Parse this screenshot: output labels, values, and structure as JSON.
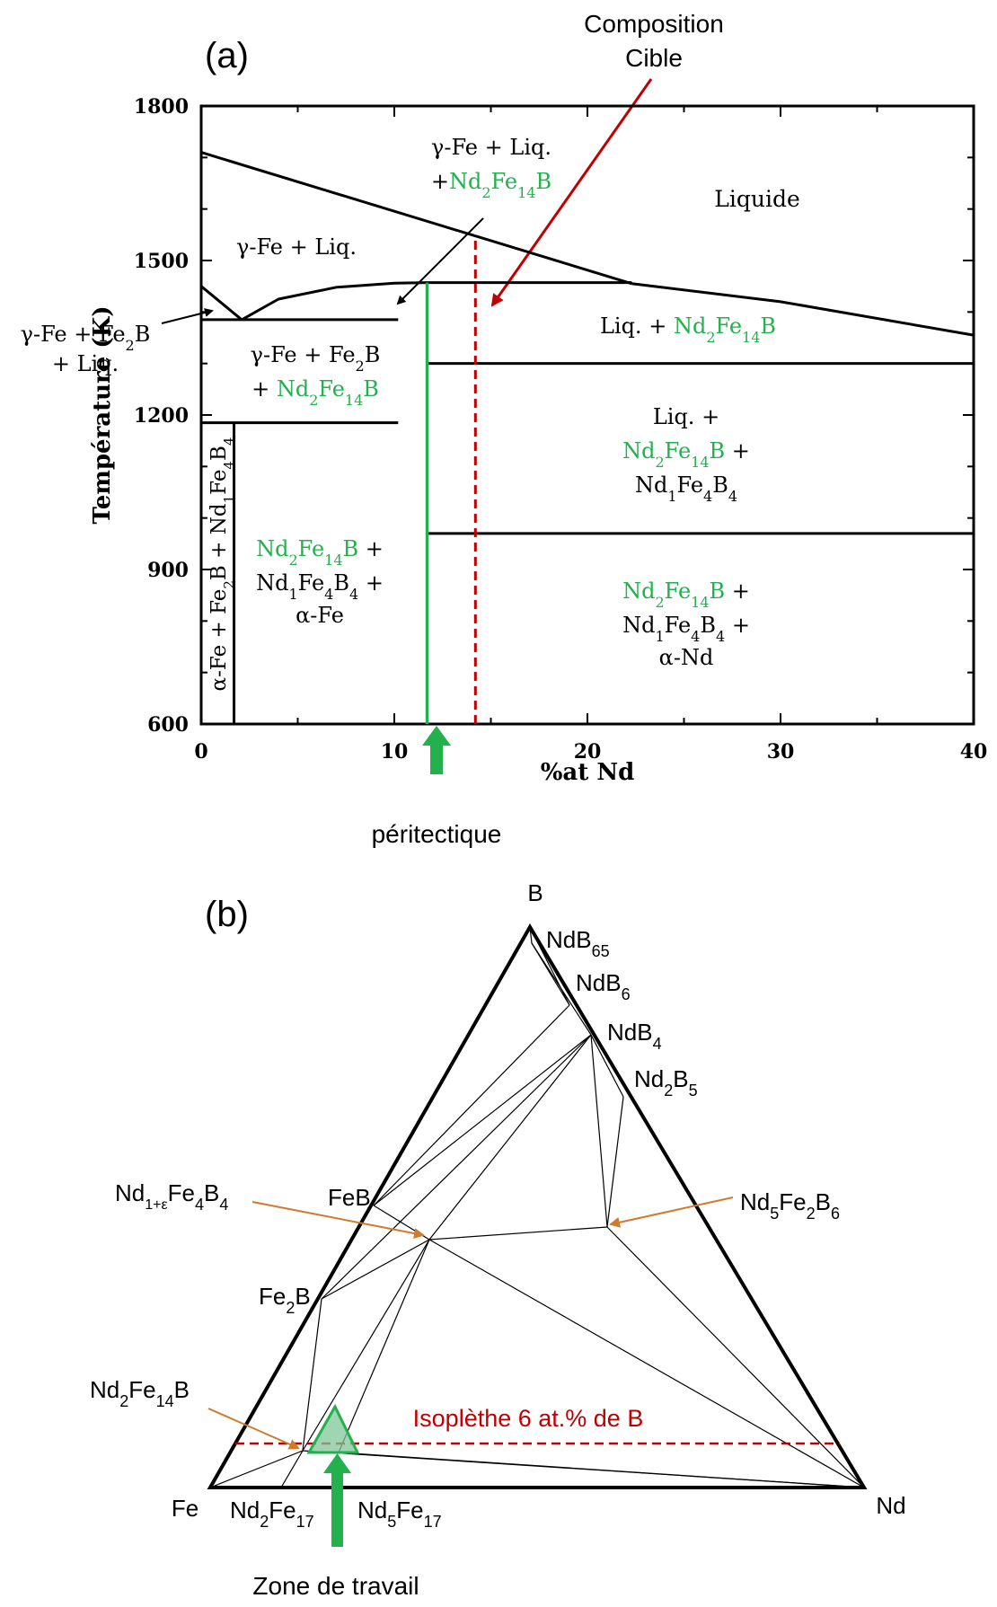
{
  "colors": {
    "black": "#000000",
    "green": "#22b14c",
    "red": "#c00000",
    "orange": "#d07a2e",
    "zone_fill": "#7fc79a"
  },
  "panel_a": {
    "label": "(a)",
    "composition_cible": {
      "line1": "Composition",
      "line2": "Cible"
    },
    "peritectique": "péritectique",
    "regions": {
      "gamma_liq_nd": {
        "line1": "γ-Fe + Liq.",
        "line2": "+Nd2Fe14B"
      },
      "liquide": "Liquide",
      "gamma_liq": "γ-Fe + Liq.",
      "gamma_fe2b_liq": {
        "line1": "γ-Fe + Fe2B",
        "line2": "+ Liq."
      },
      "liq_nd": "Liq. + Nd2Fe14B",
      "gamma_fe2b_nd": {
        "line1": "γ-Fe + Fe2B",
        "line2": "+ Nd2Fe14B"
      },
      "liq_nd_nd1": {
        "line1": "Liq. +",
        "line2": "Nd2Fe14B +",
        "line3": "Nd1Fe4B4"
      },
      "alpha_vertical": "α-Fe + Fe2B + Nd1Fe4B4",
      "nd_nd1_alphafe": {
        "line1": "Nd2Fe14B +",
        "line2": "Nd1Fe4B4 +",
        "line3": "α-Fe"
      },
      "nd_nd1_alphand": {
        "line1": "Nd2Fe14B +",
        "line2": "Nd1Fe4B4 +",
        "line3": "α-Nd"
      }
    }
  },
  "chart_data": {
    "type": "line",
    "xlabel": "%at Nd",
    "ylabel": "Température (K)",
    "xlim": [
      0,
      40
    ],
    "ylim": [
      600,
      1800
    ],
    "x_ticks": [
      "0",
      "10",
      "20",
      "30",
      "40"
    ],
    "y_ticks": [
      "600",
      "900",
      "1200",
      "1500",
      "1800"
    ],
    "series": [
      {
        "x": [
          0,
          22.3
        ],
        "y": [
          1710,
          1455
        ]
      },
      {
        "x": [
          22.3,
          30,
          40
        ],
        "y": [
          1455,
          1420,
          1355
        ]
      },
      {
        "x": [
          0,
          2.1
        ],
        "y": [
          1450,
          1385
        ]
      },
      {
        "x": [
          2.1,
          4,
          7,
          10,
          11.7
        ],
        "y": [
          1385,
          1425,
          1448,
          1456,
          1457
        ]
      },
      {
        "x": [
          11.7,
          22.3
        ],
        "y": [
          1457,
          1457
        ]
      },
      {
        "x": [
          0,
          10.2
        ],
        "y": [
          1385,
          1385
        ]
      },
      {
        "x": [
          0,
          10.2
        ],
        "y": [
          1185,
          1185
        ]
      },
      {
        "x": [
          11.7,
          40
        ],
        "y": [
          1300,
          1300
        ]
      },
      {
        "x": [
          11.7,
          40
        ],
        "y": [
          970,
          970
        ]
      },
      {
        "x": [
          1.7,
          1.7
        ],
        "y": [
          600,
          1185
        ]
      },
      {
        "x": [
          11.7,
          11.7
        ],
        "y": [
          600,
          1457
        ]
      },
      {
        "x": [
          14.2,
          14.2
        ],
        "y": [
          600,
          1550
        ]
      }
    ]
  },
  "panel_b": {
    "label": "(b)",
    "vertices": {
      "b": "B",
      "fe": "Fe",
      "nd": "Nd"
    },
    "phases": {
      "ndb65": "NdB65",
      "ndb6": "NdB6",
      "ndb4": "NdB4",
      "nd2b5": "Nd2B5",
      "feb": "FeB",
      "fe2b": "Fe2B",
      "nd1eps": "Nd1+εFe4B4",
      "nd5fe2b6": "Nd5Fe2B6",
      "nd2fe14b": "Nd2Fe14B",
      "nd2fe17": "Nd2Fe17",
      "nd5fe17": "Nd5Fe17"
    },
    "isoplethe": "Isoplèthe 6 at.% de B",
    "zone": "Zone de travail"
  }
}
